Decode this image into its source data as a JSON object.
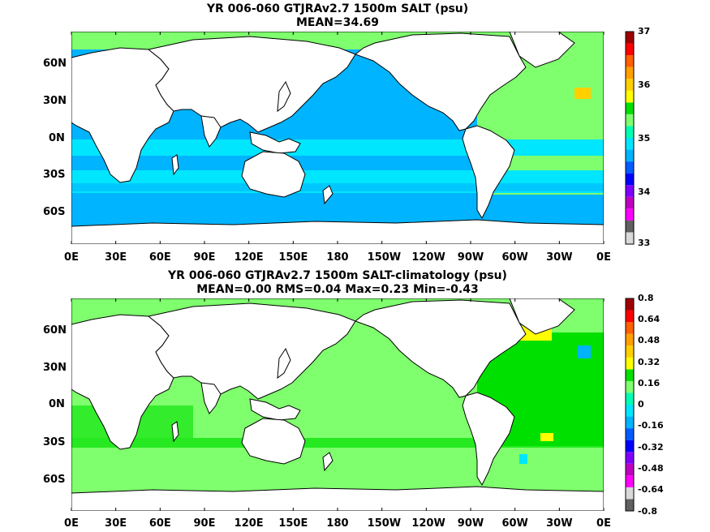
{
  "panels": [
    {
      "title_line1": "YR 006-060 GTJRAv2.7 1500m SALT (psu)",
      "title_line2": "MEAN=34.69",
      "colorbar": {
        "labels": [
          "37",
          "36",
          "35",
          "34",
          "33"
        ],
        "colors": [
          "#d9d9d9",
          "#606060",
          "#ff00ff",
          "#c000c0",
          "#7f00ff",
          "#0000ff",
          "#005cff",
          "#00b4ff",
          "#00e6ff",
          "#00ffb4",
          "#7fff6e",
          "#00e000",
          "#ffff00",
          "#ffd000",
          "#ffa000",
          "#ff6000",
          "#ff0000",
          "#a00000"
        ]
      },
      "fill": {
        "ocean": "#00b4ff",
        "land": "#ffffff",
        "arctic": "#7fff6e",
        "atlantic": "#7fff6e",
        "southern": "#00e6ff"
      }
    },
    {
      "title_line1": "YR 006-060 GTJRAv2.7 1500m SALT-climatology (psu)",
      "title_line2": "MEAN=0.00   RMS=0.04   Max=0.23   Min=-0.43",
      "colorbar": {
        "labels": [
          "0.8",
          "0.64",
          "0.48",
          "0.32",
          "0.16",
          "0",
          "-0.16",
          "-0.32",
          "-0.48",
          "-0.64",
          "-0.8"
        ],
        "colors": [
          "#606060",
          "#d9d9d9",
          "#ff00ff",
          "#c000c0",
          "#7f00ff",
          "#0000ff",
          "#005cff",
          "#00b4ff",
          "#00e6ff",
          "#00ffb4",
          "#7fff6e",
          "#00e000",
          "#ffff00",
          "#ffd000",
          "#ffa000",
          "#ff6000",
          "#ff0000",
          "#a00000"
        ]
      },
      "fill": {
        "ocean": "#7fff6e",
        "land": "#ffffff",
        "arctic": "#7fff6e",
        "atlantic": "#00e000",
        "southern": "#7fff6e"
      }
    }
  ],
  "axes": {
    "x_ticks": [
      "0E",
      "30E",
      "60E",
      "90E",
      "120E",
      "150E",
      "180",
      "150W",
      "120W",
      "90W",
      "60W",
      "30W",
      "0E"
    ],
    "y_ticks": [
      "60N",
      "30N",
      "0N",
      "30S",
      "60S"
    ]
  },
  "icons": {
    "map": "world-map-icon"
  }
}
